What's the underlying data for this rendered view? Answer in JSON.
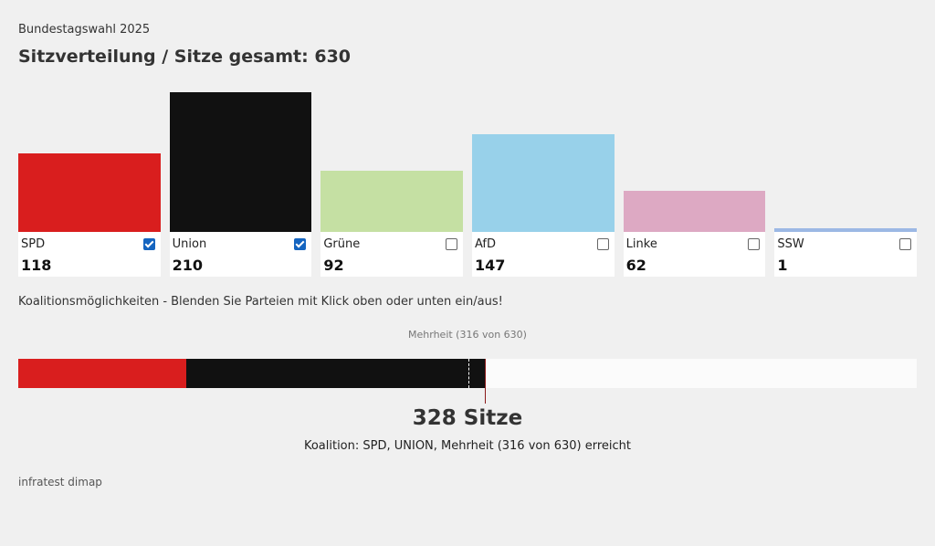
{
  "header": {
    "kicker": "Bundestagswahl 2025",
    "title": "Sitzverteilung / Sitze gesamt: 630"
  },
  "chart_data": {
    "type": "bar",
    "categories": [
      "SPD",
      "Union",
      "Grüne",
      "AfD",
      "Linke",
      "SSW"
    ],
    "values": [
      118,
      210,
      92,
      147,
      62,
      1
    ],
    "total_seats": 630,
    "colors": [
      "#d91e1e",
      "#111111",
      "#c5e0a3",
      "#98d1ea",
      "#dda9c3",
      "#9cb8e4"
    ],
    "selected": [
      true,
      true,
      false,
      false,
      false,
      false
    ]
  },
  "coalition": {
    "instruction": "Koalitionsmöglichkeiten - Blenden Sie Parteien mit Klick oben oder unten ein/aus!",
    "majority_label": "Mehrheit (316 von 630)",
    "majority_seats": 316,
    "total_text": "328 Sitze",
    "result_text": "Koalition: SPD, UNION, Mehrheit (316 von 630) erreicht"
  },
  "footer": {
    "source": "infratest dimap"
  }
}
